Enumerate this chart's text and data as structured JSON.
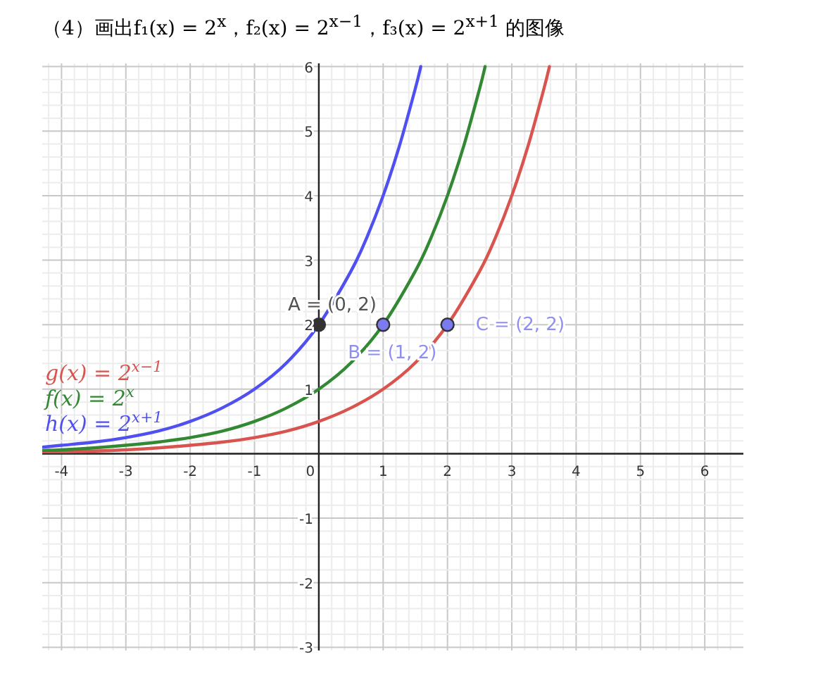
{
  "chart_data": {
    "type": "line",
    "title": "（4）画出f₁(x) = 2$^{x}$，f₂(x) = 2$^{x−1}$，f₃(x) = 2$^{x+1}$ 的图像",
    "xlim": [
      -4.3,
      6.6
    ],
    "ylim": [
      -3.05,
      6.05
    ],
    "xticks": [
      -4,
      -3,
      -2,
      -1,
      0,
      1,
      2,
      3,
      4,
      5,
      6
    ],
    "yticks": [
      -3,
      -2,
      -1,
      {
        "value": 0,
        "label": null
      },
      1,
      2,
      3,
      4,
      5,
      6
    ],
    "grid": true,
    "legend": "left",
    "marker": "none",
    "line_style": "solid",
    "series": [
      {
        "name": "g(x) = 2$^{x−1}$",
        "color": "#d9534f",
        "x": [
          -4.3,
          -4,
          -3.5,
          -3,
          -2.5,
          -2,
          -1.5,
          -1,
          -0.5,
          0,
          0.5,
          1,
          1.5,
          2,
          2.5,
          2.75,
          3,
          3.25,
          3.5,
          3.585
        ],
        "values": [
          0.03,
          0.03,
          0.04,
          0.06,
          0.09,
          0.13,
          0.18,
          0.25,
          0.35,
          0.5,
          0.71,
          1,
          1.41,
          2,
          2.83,
          3.36,
          4,
          4.76,
          5.66,
          6
        ]
      },
      {
        "name": "f(x) = 2$^{x}$",
        "color": "#338833",
        "x": [
          -4.3,
          -4,
          -3.5,
          -3,
          -2.5,
          -2,
          -1.5,
          -1,
          -0.5,
          0,
          0.5,
          1,
          1.5,
          1.75,
          2,
          2.25,
          2.5,
          2.585
        ],
        "values": [
          0.05,
          0.06,
          0.09,
          0.13,
          0.18,
          0.25,
          0.35,
          0.5,
          0.71,
          1,
          1.41,
          2,
          2.83,
          3.36,
          4,
          4.76,
          5.66,
          6
        ]
      },
      {
        "name": "h(x) = 2$^{x+1}$",
        "color": "#5050f0",
        "x": [
          -4.3,
          -4,
          -3.5,
          -3,
          -2.5,
          -2,
          -1.5,
          -1,
          -0.5,
          0,
          0.5,
          0.75,
          1,
          1.25,
          1.5,
          1.585
        ],
        "values": [
          0.1,
          0.13,
          0.18,
          0.25,
          0.35,
          0.5,
          0.71,
          1,
          1.41,
          2,
          2.83,
          3.36,
          4,
          4.76,
          5.66,
          6
        ]
      },
      {
        "type": "scatter",
        "marker": "circle",
        "color": "#333333",
        "x": [
          0
        ],
        "values": [
          2
        ]
      },
      {
        "type": "scatter",
        "marker": "circle",
        "color": "#7b7bf0",
        "x": [
          1,
          2
        ],
        "values": [
          2,
          2
        ]
      }
    ],
    "annotations": [
      {
        "text": "A = (0, 2)",
        "x": 0,
        "y": 2
      },
      {
        "text": "B = (1, 2)",
        "x": 1,
        "y": 2
      },
      {
        "text": "C = (2, 2)",
        "x": 2,
        "y": 2
      }
    ]
  }
}
